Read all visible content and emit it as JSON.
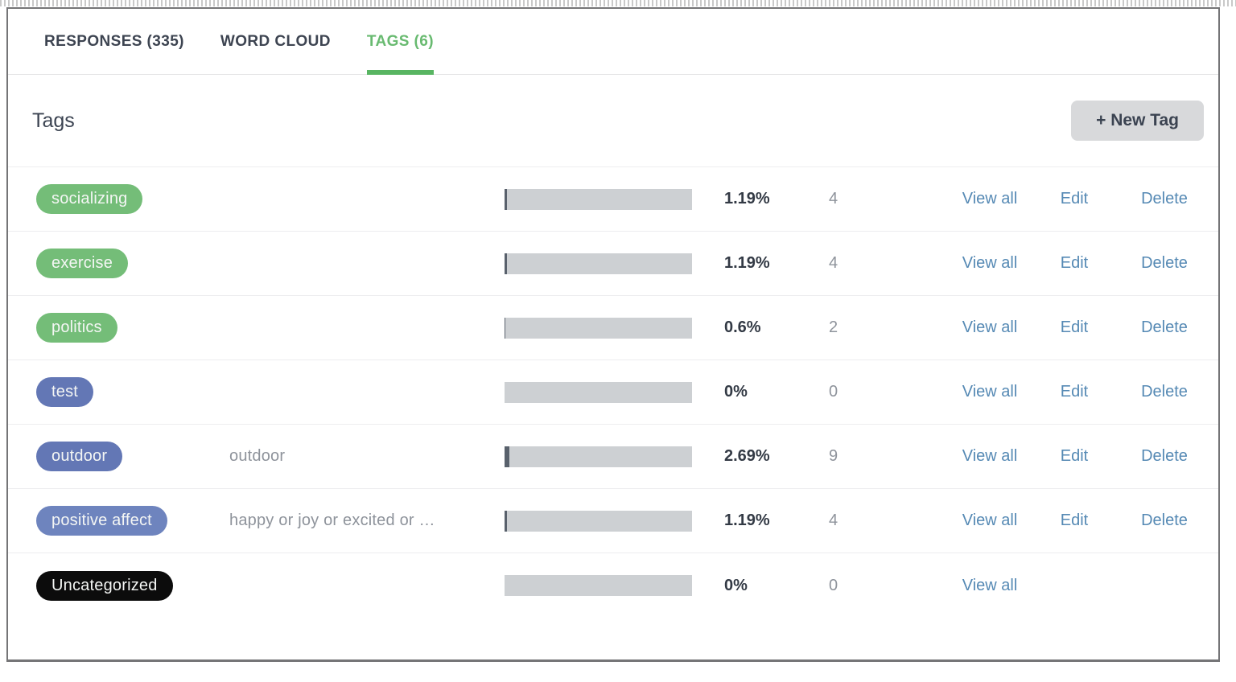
{
  "tabs": [
    {
      "label": "RESPONSES (335)",
      "active": false
    },
    {
      "label": "WORD CLOUD",
      "active": false
    },
    {
      "label": "TAGS (6)",
      "active": true
    }
  ],
  "header": {
    "title": "Tags",
    "new_tag_label": "+ New Tag"
  },
  "colors": {
    "active_tab_green": "#58b562",
    "green_pill": "#74bd78",
    "blue_pill": "#6377b5",
    "light_blue_pill": "#6e84be",
    "black_pill": "#0c0c0c",
    "link_blue": "#5589b4",
    "bar_track": "#cdd0d3",
    "bar_fill": "#59616c"
  },
  "tags": [
    {
      "name": "socializing",
      "pill_color": "#74bd78",
      "description": "",
      "percent": "1.19%",
      "percent_value": 1.19,
      "count": "4",
      "actions": {
        "view_all": "View all",
        "edit": "Edit",
        "delete": "Delete"
      }
    },
    {
      "name": "exercise",
      "pill_color": "#74bd78",
      "description": "",
      "percent": "1.19%",
      "percent_value": 1.19,
      "count": "4",
      "actions": {
        "view_all": "View all",
        "edit": "Edit",
        "delete": "Delete"
      }
    },
    {
      "name": "politics",
      "pill_color": "#74bd78",
      "description": "",
      "percent": "0.6%",
      "percent_value": 0.6,
      "count": "2",
      "actions": {
        "view_all": "View all",
        "edit": "Edit",
        "delete": "Delete"
      }
    },
    {
      "name": "test",
      "pill_color": "#6377b5",
      "description": "",
      "percent": "0%",
      "percent_value": 0,
      "count": "0",
      "actions": {
        "view_all": "View all",
        "edit": "Edit",
        "delete": "Delete"
      }
    },
    {
      "name": "outdoor",
      "pill_color": "#6377b5",
      "description": "outdoor",
      "percent": "2.69%",
      "percent_value": 2.69,
      "count": "9",
      "actions": {
        "view_all": "View all",
        "edit": "Edit",
        "delete": "Delete"
      }
    },
    {
      "name": "positive affect",
      "pill_color": "#6e84be",
      "description": "happy or joy or excited or …",
      "percent": "1.19%",
      "percent_value": 1.19,
      "count": "4",
      "actions": {
        "view_all": "View all",
        "edit": "Edit",
        "delete": "Delete"
      }
    },
    {
      "name": "Uncategorized",
      "pill_color": "#0c0c0c",
      "description": "",
      "percent": "0%",
      "percent_value": 0,
      "count": "0",
      "actions": {
        "view_all": "View all",
        "edit": null,
        "delete": null
      }
    }
  ]
}
